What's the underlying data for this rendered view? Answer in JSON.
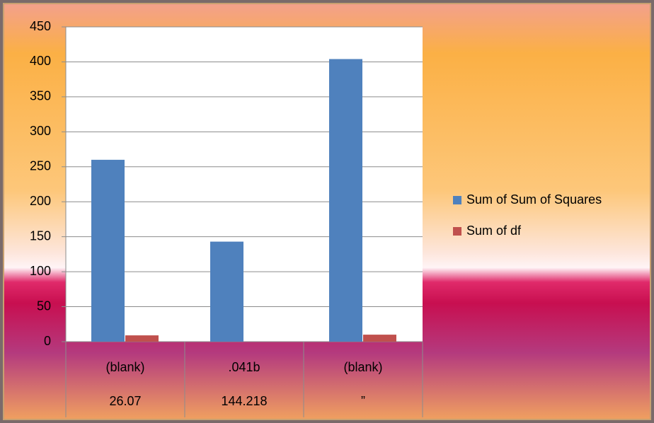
{
  "chart_data": {
    "type": "bar",
    "categories": [
      "(blank)",
      ".041b",
      "(blank)"
    ],
    "categories_level2": [
      "26.07",
      "144.218",
      "”"
    ],
    "series": [
      {
        "name": "Sum of Sum of Squares",
        "color": "#4f81bd",
        "values": [
          260,
          143,
          404
        ]
      },
      {
        "name": "Sum of df",
        "color": "#c0504d",
        "values": [
          9,
          null,
          10
        ]
      }
    ],
    "ylim": [
      0,
      450
    ],
    "yticks": [
      0,
      50,
      100,
      150,
      200,
      250,
      300,
      350,
      400,
      450
    ],
    "grid": true,
    "legend": "right"
  }
}
